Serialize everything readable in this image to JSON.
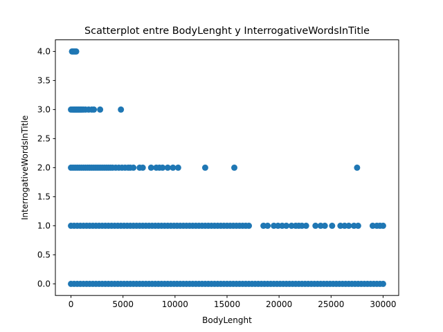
{
  "chart_data": {
    "type": "scatter",
    "title": "Scatterplot entre BodyLenght y InterrogativeWordsInTitle",
    "xlabel": "BodyLenght",
    "ylabel": "InterrogativeWordsInTitle",
    "xlim": [
      -1500,
      31500
    ],
    "ylim": [
      -0.2,
      4.2
    ],
    "xticks": [
      0,
      5000,
      10000,
      15000,
      20000,
      25000,
      30000
    ],
    "xtick_labels": [
      "0",
      "5000",
      "10000",
      "15000",
      "20000",
      "25000",
      "30000"
    ],
    "yticks": [
      0.0,
      0.5,
      1.0,
      1.5,
      2.0,
      2.5,
      3.0,
      3.5,
      4.0
    ],
    "ytick_labels": [
      "0.0",
      "0.5",
      "1.0",
      "1.5",
      "2.0",
      "2.5",
      "3.0",
      "3.5",
      "4.0"
    ],
    "grid": false,
    "color": "#1f77b4",
    "series": [
      {
        "groups": [
          {
            "y": 4,
            "x": [
              100,
              200,
              300,
              400,
              500
            ]
          },
          {
            "y": 3,
            "x": [
              0,
              150,
              250,
              350,
              450,
              550,
              650,
              750,
              850,
              950,
              1050,
              1200,
              1400,
              1700,
              2000,
              2200,
              2800,
              4800
            ]
          },
          {
            "y": 2,
            "x": [
              0,
              200,
              400,
              600,
              800,
              1000,
              1200,
              1400,
              1600,
              1800,
              2000,
              2200,
              2400,
              2600,
              2800,
              3000,
              3200,
              3400,
              3600,
              3800,
              4000,
              4300,
              4600,
              4900,
              5200,
              5500,
              5700,
              6000,
              6600,
              6900,
              7700,
              8200,
              8500,
              8800,
              9300,
              9800,
              10300,
              12900,
              15700,
              27500
            ]
          },
          {
            "y": 1,
            "x": [
              0,
              300,
              600,
              900,
              1200,
              1500,
              1800,
              2100,
              2400,
              2700,
              3000,
              3300,
              3600,
              3900,
              4200,
              4500,
              4800,
              5100,
              5400,
              5700,
              6000,
              6300,
              6600,
              6900,
              7200,
              7500,
              7800,
              8100,
              8400,
              8700,
              9000,
              9300,
              9600,
              9900,
              10200,
              10500,
              10800,
              11100,
              11400,
              11700,
              12000,
              12300,
              12600,
              12900,
              13200,
              13500,
              13800,
              14100,
              14400,
              14700,
              15000,
              15300,
              15600,
              15900,
              16200,
              16500,
              16800,
              17100,
              18500,
              18900,
              19500,
              19900,
              20300,
              20700,
              21200,
              21600,
              21900,
              22200,
              22600,
              23500,
              24000,
              24400,
              25100,
              25900,
              26300,
              26700,
              27200,
              27600,
              29000,
              29400,
              29700,
              30000
            ]
          },
          {
            "y": 0,
            "x": [
              0,
              300,
              600,
              900,
              1200,
              1500,
              1800,
              2100,
              2400,
              2700,
              3000,
              3300,
              3600,
              3900,
              4200,
              4500,
              4800,
              5100,
              5400,
              5700,
              6000,
              6300,
              6600,
              6900,
              7200,
              7500,
              7800,
              8100,
              8400,
              8700,
              9000,
              9300,
              9600,
              9900,
              10200,
              10500,
              10800,
              11100,
              11400,
              11700,
              12000,
              12300,
              12600,
              12900,
              13200,
              13500,
              13800,
              14100,
              14400,
              14700,
              15000,
              15300,
              15600,
              15900,
              16200,
              16500,
              16800,
              17100,
              17400,
              17700,
              18000,
              18300,
              18600,
              18900,
              19200,
              19500,
              19800,
              20100,
              20400,
              20700,
              21000,
              21300,
              21600,
              21900,
              22200,
              22500,
              22800,
              23100,
              23400,
              23700,
              24000,
              24300,
              24600,
              24900,
              25200,
              25500,
              25800,
              26100,
              26400,
              26700,
              27000,
              27300,
              27600,
              27900,
              28200,
              28500,
              28800,
              29100,
              29400,
              29700,
              30000
            ]
          }
        ]
      }
    ]
  }
}
